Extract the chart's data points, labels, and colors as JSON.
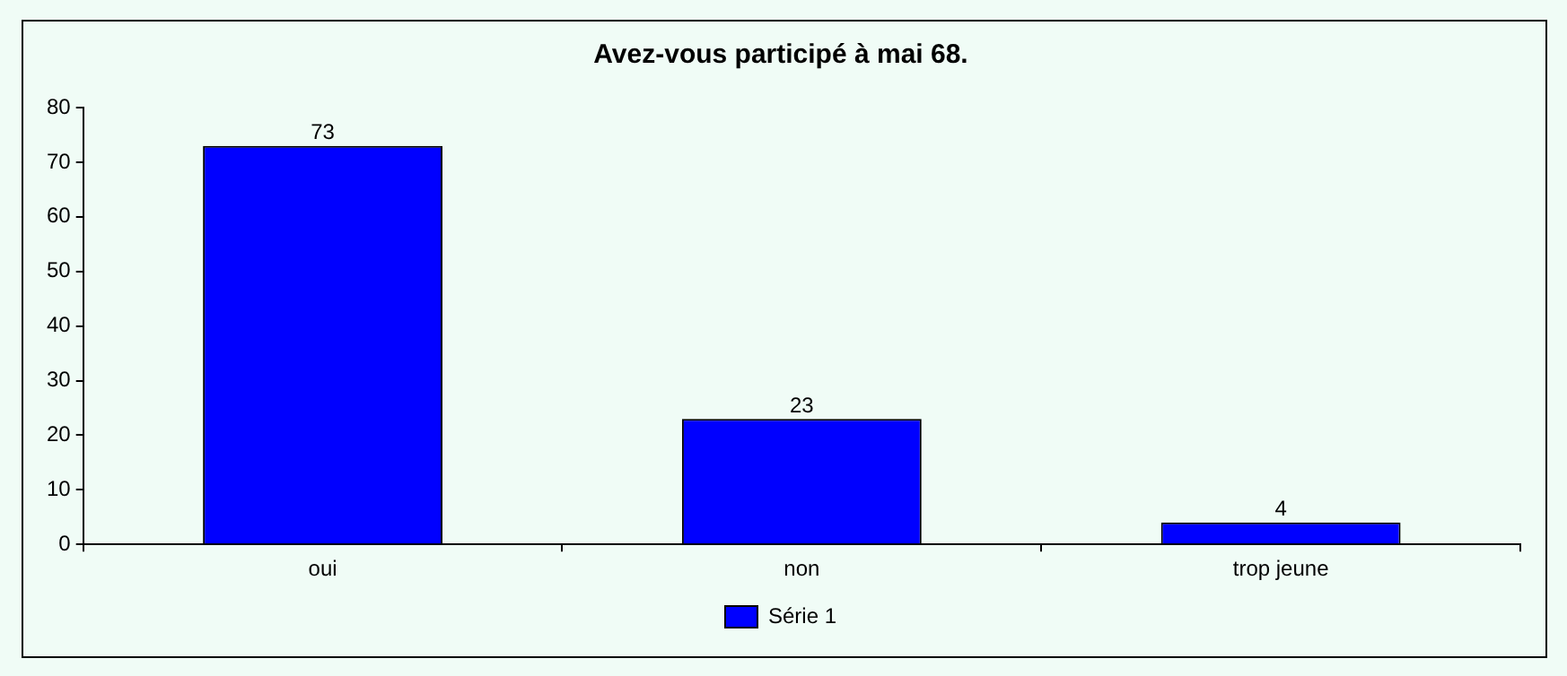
{
  "chart_data": {
    "type": "bar",
    "title": "Avez-vous participé à mai 68.",
    "categories": [
      "oui",
      "non",
      "trop jeune"
    ],
    "series": [
      {
        "name": "Série 1",
        "color": "#0000ff",
        "values": [
          73,
          23,
          4
        ]
      }
    ],
    "ylim": [
      0,
      80
    ],
    "yticks": [
      0,
      10,
      20,
      30,
      40,
      50,
      60,
      70,
      80
    ],
    "grid": false,
    "legend": "bottom",
    "data_labels": true
  }
}
